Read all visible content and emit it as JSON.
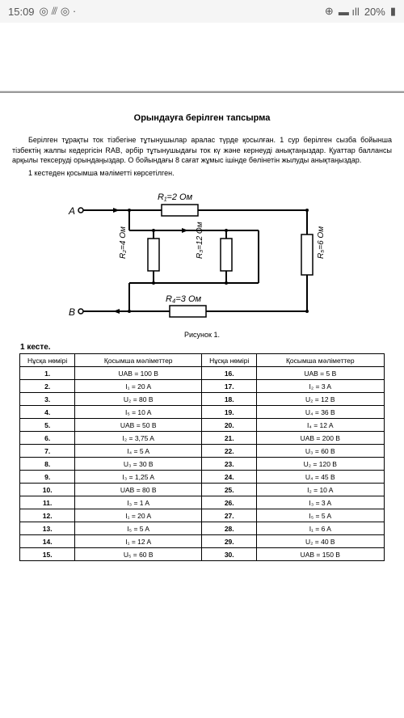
{
  "statusbar": {
    "time": "15:09",
    "icons_left": "◎ ⫻ ◎ ·",
    "wifi": "⊕",
    "signal": "📶",
    "battery": "20%",
    "battery_icon": "▮"
  },
  "document": {
    "title": "Орындауға берілген тапсырма",
    "para1": "Берілген тұрақты ток тізбегіне тұтынушылар аралас түрде қосылған. 1 сур берілген сызба бойынша тізбектің жалпы кедергісін RAB, әрбір тұтынушыдағы ток кү және кернеуді анықтаңыздар. Қуаттар баллансы арқылы тексеруді орындаңыздар. О бойындағы 8 сағат жұмыс ішінде бөлінетін жылуды анықтаңыздар.",
    "para2": "1 кестеден қосымша мәліметті көрсетілген.",
    "circuit_caption": "Рисунок 1.",
    "table_title": "1 кесте.",
    "circuit_labels": {
      "A": "А",
      "B": "В",
      "R1": "R₁=2 Ом",
      "R2": "R₂=4 Ом",
      "R3": "R₃=12 Ом",
      "R4": "R₄=3 Ом",
      "R5": "R₅=6 Ом"
    },
    "table": {
      "headers": {
        "col1": "Нұсқа нөмірі",
        "col2": "Қосымша мәліметтер",
        "col3": "Нұсқа нөмірі",
        "col4": "Қосымша мәліметтер"
      },
      "rows": [
        {
          "n1": "1.",
          "d1": "UAB = 100 В",
          "n2": "16.",
          "d2": "UAB = 5 В"
        },
        {
          "n1": "2.",
          "d1": "I₁ = 20 A",
          "n2": "17.",
          "d2": "I₂ = 3 A"
        },
        {
          "n1": "3.",
          "d1": "U₂ = 80 В",
          "n2": "18.",
          "d2": "U₂ = 12 В"
        },
        {
          "n1": "4.",
          "d1": "I₅ = 10 A",
          "n2": "19.",
          "d2": "U₄ = 36 В"
        },
        {
          "n1": "5.",
          "d1": "UAB = 50 В",
          "n2": "20.",
          "d2": "I₄ = 12 A"
        },
        {
          "n1": "6.",
          "d1": "I₂ = 3,75 A",
          "n2": "21.",
          "d2": "UAB = 200 В"
        },
        {
          "n1": "7.",
          "d1": "I₄ = 5 A",
          "n2": "22.",
          "d2": "U₃ = 60 В"
        },
        {
          "n1": "8.",
          "d1": "U₃ = 30 В",
          "n2": "23.",
          "d2": "U₂ = 120 В"
        },
        {
          "n1": "9.",
          "d1": "I₃ = 1,25 A",
          "n2": "24.",
          "d2": "U₄ = 45 В"
        },
        {
          "n1": "10.",
          "d1": "UAB = 80 В",
          "n2": "25.",
          "d2": "I₂ = 10 A"
        },
        {
          "n1": "11.",
          "d1": "I₃ = 1 A",
          "n2": "26.",
          "d2": "I₃ = 3 A"
        },
        {
          "n1": "12.",
          "d1": "I₁ = 20 A",
          "n2": "27.",
          "d2": "I₅ = 5 A"
        },
        {
          "n1": "13.",
          "d1": "I₅ = 5 A",
          "n2": "28.",
          "d2": "I₁ = 6 A"
        },
        {
          "n1": "14.",
          "d1": "I₁ = 12 A",
          "n2": "29.",
          "d2": "U₂ = 40 В"
        },
        {
          "n1": "15.",
          "d1": "U₅ = 60 В",
          "n2": "30.",
          "d2": "UAB = 150 В"
        }
      ]
    }
  }
}
